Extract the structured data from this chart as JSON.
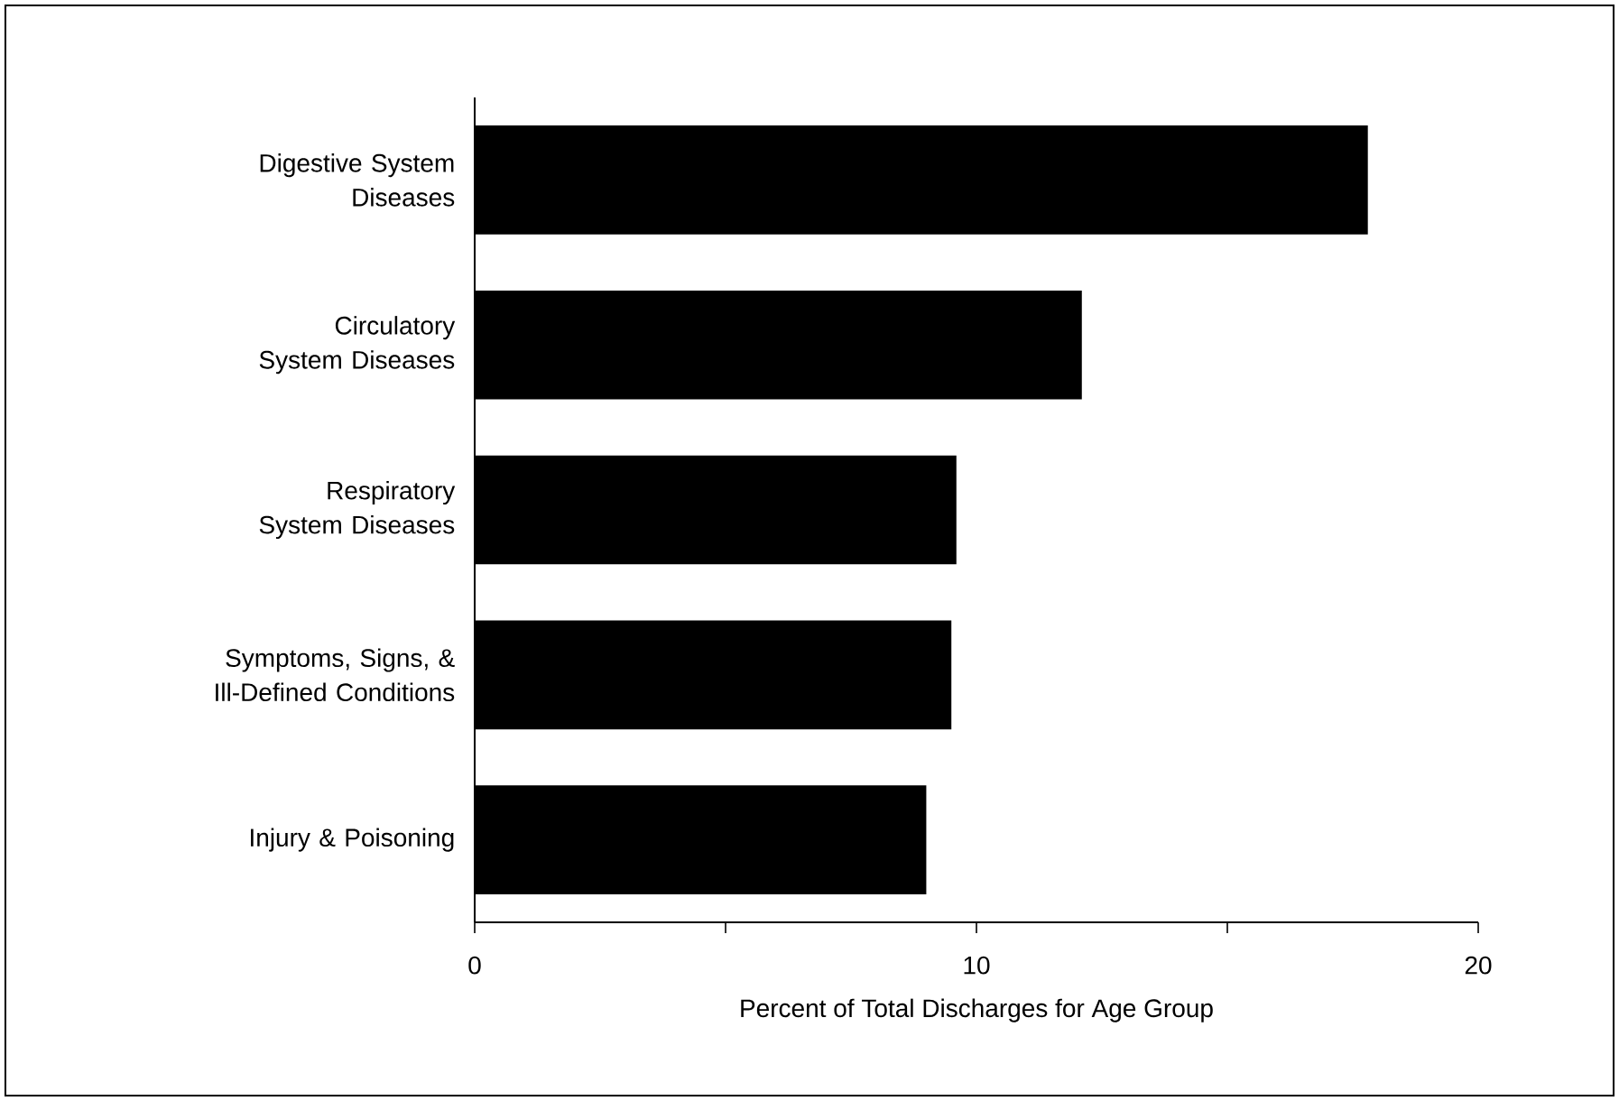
{
  "chart_data": {
    "type": "bar",
    "orientation": "horizontal",
    "categories": [
      "Digestive System Diseases",
      "Circulatory System Diseases",
      "Respiratory System Diseases",
      "Symptoms, Signs, & Ill-Defined Conditions",
      "Injury & Poisoning"
    ],
    "values": [
      17.8,
      12.1,
      9.6,
      9.5,
      9.0
    ],
    "xlabel": "Percent of Total Discharges for Age Group",
    "xlim": [
      0,
      20
    ],
    "xticks": [
      0,
      {
        "value": 5,
        "label": null
      },
      10,
      {
        "value": 15,
        "label": null
      },
      20
    ],
    "color": "#000000"
  }
}
